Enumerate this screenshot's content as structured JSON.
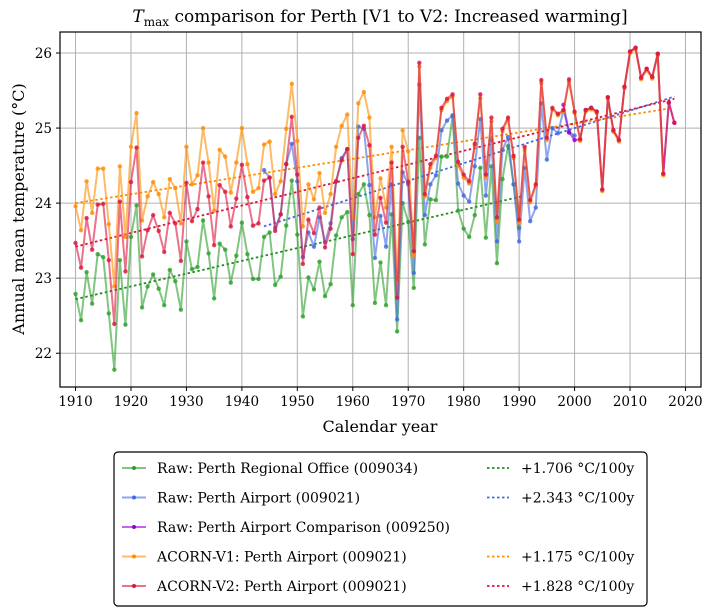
{
  "chart_data": {
    "type": "line",
    "title": {
      "main": "T",
      "subscript": "max",
      "rest": " comparison for Perth   [V1 to V2: Increased warming]"
    },
    "xlabel": "Calendar year",
    "ylabel": "Annual mean temperature (°C)",
    "xlim": [
      1907.2,
      2022.8
    ],
    "ylim": [
      21.55,
      26.28
    ],
    "xticks": [
      1910,
      1920,
      1930,
      1940,
      1950,
      1960,
      1970,
      1980,
      1990,
      2000,
      2010,
      2020
    ],
    "yticks": [
      22,
      23,
      24,
      25,
      26
    ],
    "grid": true,
    "legend_position": "below",
    "series": [
      {
        "name": "Raw: Perth Regional Office (009034)",
        "color": "#2ca02c",
        "start_year": 1910,
        "values": [
          22.79,
          22.44,
          23.08,
          22.66,
          23.32,
          23.28,
          22.53,
          21.78,
          23.24,
          22.38,
          23.55,
          23.97,
          22.61,
          22.89,
          23.05,
          22.86,
          22.64,
          23.11,
          22.96,
          22.58,
          23.49,
          23.12,
          23.15,
          23.77,
          23.33,
          22.73,
          23.46,
          23.38,
          22.94,
          23.3,
          23.74,
          23.32,
          22.99,
          22.99,
          23.55,
          23.61,
          22.91,
          23.02,
          23.7,
          24.3,
          23.58,
          22.49,
          23.01,
          22.85,
          23.22,
          22.76,
          22.92,
          23.57,
          23.81,
          23.88,
          22.64,
          24.12,
          24.25,
          23.84,
          22.67,
          23.21,
          22.64,
          23.85,
          22.29,
          24.0,
          23.75,
          22.87,
          24.87,
          23.45,
          24.05,
          24.04,
          24.62,
          24.62,
          25.16,
          23.9,
          23.66,
          23.55,
          23.84,
          24.47,
          23.54,
          24.49,
          23.2,
          24.32,
          24.76,
          24.25,
          23.67
        ]
      },
      {
        "name": "Raw: Perth Airport (009021)",
        "color": "#4169e1",
        "start_year": 1944,
        "values": [
          24.44,
          24.34,
          23.67,
          23.85,
          24.52,
          24.79,
          24.29,
          23.28,
          23.61,
          23.42,
          23.81,
          23.48,
          23.73,
          24.29,
          24.6,
          24.72,
          23.52,
          25.02,
          24.99,
          24.24,
          23.27,
          23.83,
          23.42,
          24.25,
          22.45,
          24.41,
          24.25,
          23.07,
          25.58,
          23.84,
          24.25,
          24.37,
          24.97,
          25.1,
          25.17,
          24.26,
          24.1,
          24.02,
          24.49,
          25.12,
          24.1,
          24.84,
          23.49,
          24.71,
          24.88,
          24.25,
          23.49,
          24.47,
          23.76,
          23.94,
          25.33,
          24.58,
          25.0,
          24.93,
          25.24,
          24.95,
          24.9
        ]
      },
      {
        "name": "Raw: Perth Airport Comparison (009250)",
        "color": "#9400d3",
        "start_year": 1998,
        "values": [
          25.31,
          24.94,
          24.84,
          24.85,
          25.24,
          25.27,
          25.22,
          24.18,
          25.41,
          24.97,
          24.84,
          25.55,
          26.02,
          26.07,
          25.67,
          25.79,
          25.68,
          25.99,
          24.39,
          25.34,
          25.07
        ]
      },
      {
        "name": "ACORN-V1: Perth Airport (009021)",
        "color": "#ff8c00",
        "start_year": 1910,
        "values": [
          23.96,
          23.64,
          24.29,
          23.87,
          24.46,
          24.46,
          23.72,
          22.89,
          24.49,
          23.55,
          24.75,
          25.2,
          23.77,
          24.09,
          24.28,
          24.12,
          23.81,
          24.32,
          24.2,
          23.73,
          24.75,
          24.25,
          24.37,
          25.0,
          24.54,
          23.9,
          24.71,
          24.62,
          24.14,
          24.54,
          25.0,
          24.52,
          24.15,
          24.2,
          24.78,
          24.82,
          24.12,
          24.29,
          24.99,
          25.59,
          24.83,
          23.69,
          24.25,
          24.05,
          24.4,
          23.87,
          24.12,
          24.75,
          25.03,
          25.18,
          23.81,
          25.33,
          25.48,
          25.14,
          23.81,
          24.33,
          23.94,
          24.75,
          22.99,
          24.97,
          24.69,
          23.3,
          25.82,
          24.09,
          24.47,
          24.6,
          25.24,
          25.36,
          25.42,
          24.5,
          24.34,
          24.26,
          24.76,
          25.4,
          24.34,
          25.09,
          23.75,
          24.96,
          25.11,
          24.6,
          23.74,
          24.71,
          24.01,
          24.23,
          25.6,
          24.84,
          25.25,
          25.17,
          25.22,
          25.62,
          25.2,
          24.83,
          25.22,
          25.25,
          25.2,
          24.16,
          25.39,
          24.95,
          24.82,
          25.53,
          26.0,
          26.05,
          25.65,
          25.77,
          25.66,
          25.97,
          24.37
        ]
      },
      {
        "name": "ACORN-V2: Perth Airport (009021)",
        "color": "#dc143c",
        "start_year": 1910,
        "values": [
          23.47,
          23.14,
          23.8,
          23.38,
          23.98,
          23.99,
          23.24,
          22.39,
          24.02,
          23.09,
          24.28,
          24.74,
          23.29,
          23.64,
          23.84,
          23.63,
          23.35,
          23.87,
          23.73,
          23.23,
          24.27,
          23.76,
          23.92,
          24.54,
          24.09,
          23.44,
          24.24,
          24.15,
          23.69,
          24.06,
          24.51,
          24.08,
          23.7,
          23.73,
          24.3,
          24.34,
          23.63,
          23.85,
          24.52,
          25.15,
          24.38,
          23.19,
          23.78,
          23.6,
          23.94,
          23.41,
          23.66,
          24.29,
          24.57,
          24.72,
          23.32,
          24.87,
          25.03,
          24.77,
          23.58,
          24.07,
          23.74,
          24.54,
          22.74,
          24.75,
          24.28,
          23.36,
          25.87,
          24.12,
          24.52,
          24.63,
          25.27,
          25.39,
          25.45,
          24.55,
          24.38,
          24.29,
          24.79,
          25.45,
          24.38,
          25.14,
          23.81,
          24.99,
          25.14,
          24.63,
          23.78,
          24.75,
          24.04,
          24.25,
          25.64,
          24.87,
          25.27,
          25.19,
          25.24,
          25.65,
          25.22,
          24.85,
          25.24,
          25.27,
          25.22,
          24.18,
          25.41,
          24.97,
          24.84,
          25.55,
          26.02,
          26.07,
          25.67,
          25.79,
          25.68,
          25.99,
          24.39,
          25.34,
          25.07
        ]
      }
    ],
    "trends": [
      {
        "label": "+1.706 °C/100y",
        "color": "#228b22",
        "x": [
          1910,
          1990.5
        ],
        "y": [
          22.72,
          24.09
        ]
      },
      {
        "label": "+2.343 °C/100y",
        "color": "#4169e1",
        "x": [
          1944,
          2018
        ],
        "y": [
          23.69,
          25.42
        ]
      },
      {
        "label": "+1.175 °C/100y",
        "color": "#ff8c00",
        "x": [
          1910,
          2017
        ],
        "y": [
          24.0,
          25.26
        ]
      },
      {
        "label": "+1.828 °C/100y",
        "color": "#dc143c",
        "x": [
          1910,
          2018
        ],
        "y": [
          23.42,
          25.39
        ]
      }
    ]
  }
}
